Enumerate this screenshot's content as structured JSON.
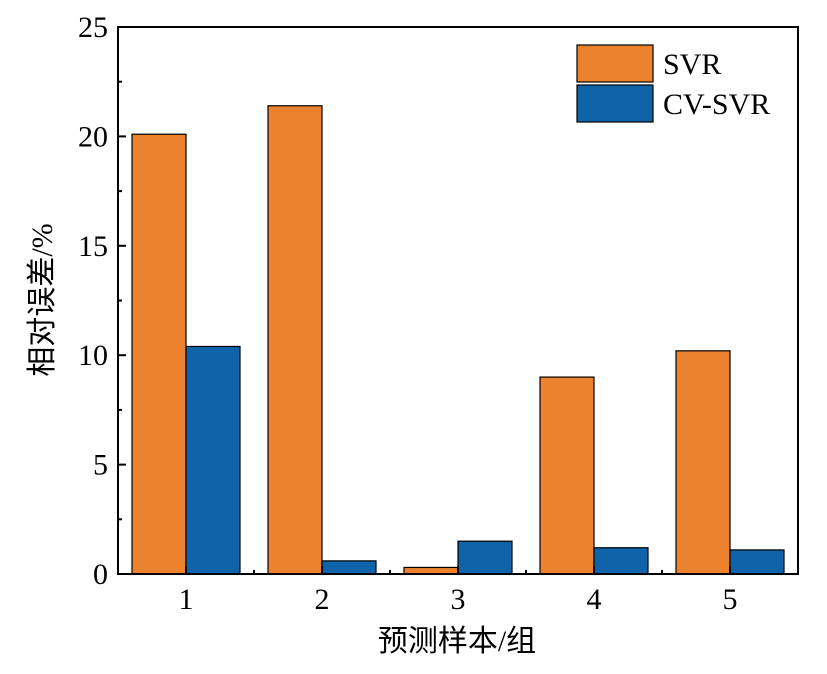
{
  "chart_data": {
    "type": "bar",
    "categories": [
      "1",
      "2",
      "3",
      "4",
      "5"
    ],
    "series": [
      {
        "name": "SVR",
        "color": "#ED822E",
        "values": [
          20.1,
          21.4,
          0.3,
          9.0,
          10.2
        ]
      },
      {
        "name": "CV-SVR",
        "color": "#0F63A8",
        "values": [
          10.4,
          0.6,
          1.5,
          1.2,
          1.1
        ]
      }
    ],
    "xlabel": "预测样本/组",
    "ylabel": "相对误差/%",
    "ylim": [
      0,
      25
    ],
    "yticks": [
      "0",
      "5",
      "10",
      "15",
      "20",
      "25"
    ],
    "grid": false,
    "legend_position": "top-right"
  }
}
